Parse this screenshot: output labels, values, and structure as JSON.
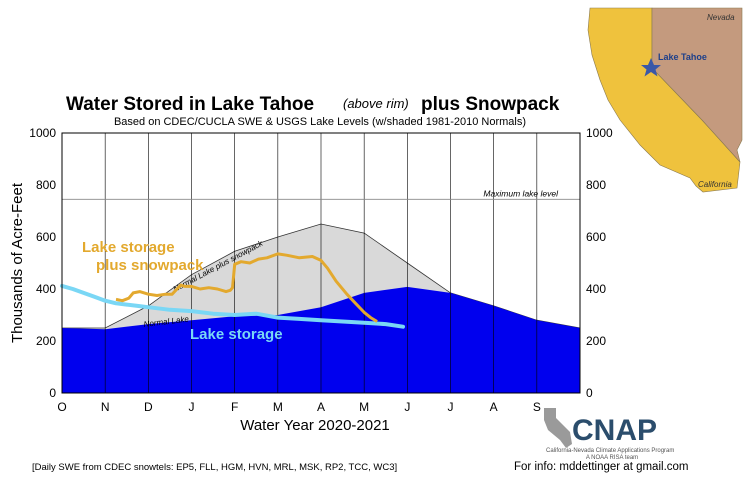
{
  "chart_data": {
    "type": "area",
    "title_main_left": "Water Stored in Lake Tahoe",
    "title_italic": "(above rim)",
    "title_main_right": "plus Snowpack",
    "subtitle": "Based on CDEC/CUCLA SWE & USGS Lake Levels (w/shaded 1981-2010 Normals)",
    "xlabel": "Water Year 2020-2021",
    "ylabel": "Thousands of Acre-Feet",
    "ylim": [
      0,
      1000
    ],
    "yticks": [
      "0",
      "200",
      "400",
      "600",
      "800",
      "1000"
    ],
    "categories": [
      "O",
      "N",
      "D",
      "J",
      "F",
      "M",
      "A",
      "M",
      "J",
      "J",
      "A",
      "S"
    ],
    "max_lake_level": 745,
    "max_lake_level_label": "Maximum lake level",
    "normal_lake_label": "Normal Lake",
    "normal_plus_snow_label": "Normal Lake plus snowpack",
    "series": [
      {
        "name": "Normal Lake plus snowpack",
        "color": "#d9d9d9",
        "x": [
          0,
          1,
          2,
          3,
          4,
          5,
          6,
          7,
          8,
          9,
          10,
          11,
          12
        ],
        "values": [
          250,
          250,
          335,
          455,
          545,
          600,
          650,
          615,
          500,
          385,
          335,
          280,
          250
        ]
      },
      {
        "name": "Normal Lake",
        "color": "#0000ee",
        "x": [
          0,
          1,
          2,
          3,
          4,
          5,
          6,
          7,
          8,
          9,
          10,
          11,
          12
        ],
        "values": [
          250,
          245,
          265,
          280,
          295,
          300,
          330,
          385,
          408,
          385,
          335,
          280,
          250
        ]
      },
      {
        "name": "Lake storage plus snowpack",
        "color": "#e3a92e",
        "x": [
          1.25,
          1.4,
          1.55,
          1.65,
          1.8,
          2.0,
          2.2,
          2.4,
          2.55,
          2.75,
          2.85,
          3.0,
          3.2,
          3.4,
          3.6,
          3.8,
          3.9,
          3.95,
          4.0,
          4.15,
          4.35,
          4.55,
          4.75,
          5.0,
          5.2,
          5.5,
          5.8,
          6.0,
          6.15,
          6.35,
          6.6,
          6.8,
          7.0,
          7.15,
          7.3
        ],
        "values": [
          360,
          355,
          365,
          385,
          390,
          380,
          375,
          380,
          380,
          415,
          410,
          410,
          400,
          405,
          400,
          390,
          395,
          405,
          495,
          505,
          500,
          515,
          520,
          535,
          530,
          520,
          525,
          510,
          480,
          430,
          380,
          345,
          310,
          290,
          275
        ]
      },
      {
        "name": "Lake storage",
        "color": "#7ad7f5",
        "x": [
          0,
          0.25,
          0.5,
          0.75,
          1.0,
          1.25,
          1.5,
          1.75,
          2.0,
          2.5,
          3.0,
          3.5,
          4.0,
          4.5,
          5.0,
          5.5,
          6.0,
          6.5,
          7.0,
          7.5,
          7.9
        ],
        "values": [
          412,
          400,
          385,
          370,
          355,
          345,
          340,
          335,
          330,
          320,
          315,
          305,
          300,
          305,
          290,
          285,
          280,
          275,
          270,
          265,
          255
        ]
      }
    ],
    "annotations": [
      {
        "text": "Lake storage",
        "line2": "plus snowpack",
        "color": "#e3a92e"
      },
      {
        "text": "Lake storage",
        "color": "#7ad7f5"
      }
    ]
  },
  "footer": {
    "snowtels": "[Daily SWE from CDEC snowtels: EP5, FLL, HGM, HVN, MRL, MSK, RP2, TCC, WC3]",
    "contact": "For info: mddettinger at gmail.com"
  },
  "logo": {
    "name": "CNAP",
    "line1": "California-Nevada Climate Applications Program",
    "line2": "A NOAA RISA team"
  },
  "map": {
    "nevada": "Nevada",
    "california": "California",
    "lake_tahoe": "Lake Tahoe",
    "california_color": "#efc23d",
    "nevada_color": "#c49a7e",
    "star_color": "#3a58a8"
  }
}
